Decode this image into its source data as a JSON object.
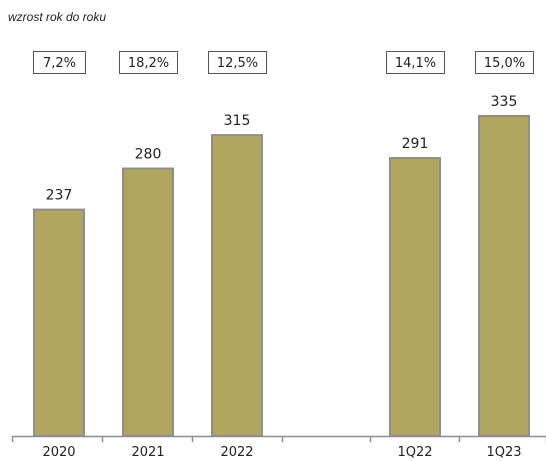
{
  "chart_data": {
    "type": "bar",
    "subtitle": "wzrost rok do roku",
    "categories": [
      "2020",
      "2021",
      "2022",
      "1Q22",
      "1Q23"
    ],
    "values": [
      237,
      280,
      315,
      291,
      335
    ],
    "growth_labels": [
      "7,2%",
      "18,2%",
      "12,5%",
      "14,1%",
      "15,0%"
    ],
    "ylim": [
      0,
      335
    ],
    "grid": false,
    "colors": {
      "bar_fill": "#b0a660",
      "bar_border": "#8e8e8e",
      "axis": "#8e8e8e",
      "growth_box_border": "#555555"
    }
  }
}
